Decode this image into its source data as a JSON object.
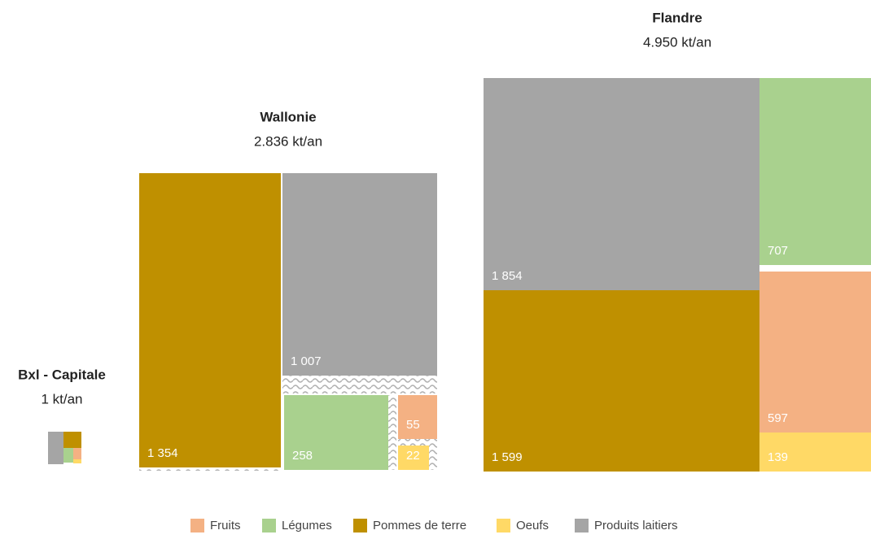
{
  "chart_data": {
    "type": "treemap",
    "series": [
      {
        "name": "Fruits",
        "color": "#f4b183"
      },
      {
        "name": "Légumes",
        "color": "#a9d18e"
      },
      {
        "name": "Pommes de terre",
        "color": "#bf9000"
      },
      {
        "name": "Oeufs",
        "color": "#ffd966"
      },
      {
        "name": "Produits laitiers",
        "color": "#a5a5a5"
      }
    ],
    "groups": [
      {
        "name": "Wallonie",
        "subtitle": "2.836 kt/an",
        "items": [
          {
            "series": 2,
            "value": 1354,
            "value_label": "1 354"
          },
          {
            "series": 4,
            "value": 1007,
            "value_label": "1 007"
          },
          {
            "series": 1,
            "value": 258
          },
          {
            "series": 0,
            "value": 55
          },
          {
            "series": 3,
            "value": 22
          }
        ]
      },
      {
        "name": "Flandre",
        "subtitle": "4.950 kt/an",
        "items": [
          {
            "series": 4,
            "value": 1854,
            "value_label": "1 854"
          },
          {
            "series": 2,
            "value": 1599,
            "value_label": "1 599"
          },
          {
            "series": 1,
            "value": 707
          },
          {
            "series": 0,
            "value": 597
          },
          {
            "series": 3,
            "value": 139
          }
        ]
      },
      {
        "name": "Bxl - Capitale",
        "subtitle": "1 kt/an",
        "items": []
      }
    ]
  }
}
